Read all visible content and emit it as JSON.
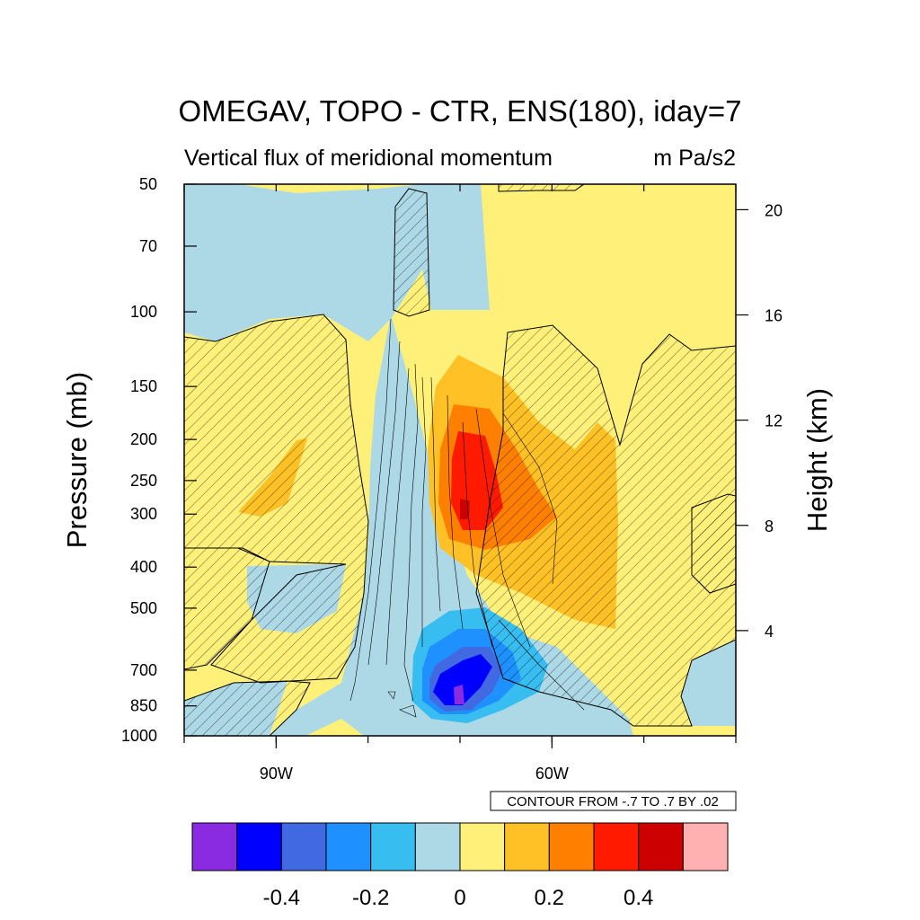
{
  "chart_data": {
    "type": "contour",
    "title": "OMEGAV, TOPO - CTR, ENS(180), iday=7",
    "subtitle_left": "Vertical flux of meridional momentum",
    "subtitle_right": "m Pa/s2",
    "ylabel_left": "Pressure (mb)",
    "ylabel_right": "Height (km)",
    "x_ticks": [
      {
        "x": 90,
        "label": "90W"
      },
      {
        "x": 60,
        "label": "60W"
      }
    ],
    "x_minor": [
      100,
      90,
      80,
      70,
      60,
      50,
      40
    ],
    "xlim": [
      "100W",
      "40W"
    ],
    "pressure_ticks": [
      50,
      70,
      100,
      150,
      200,
      250,
      300,
      400,
      500,
      700,
      850,
      1000
    ],
    "pressure_labels": [
      "50",
      "70",
      "100",
      "150",
      "200",
      "250",
      "300",
      "400",
      "500",
      "700",
      "850",
      "1000"
    ],
    "height_ticks": [
      4,
      8,
      12,
      16,
      20
    ],
    "height_labels": [
      "4",
      "8",
      "12",
      "16",
      "20"
    ],
    "contour_info": "CONTOUR FROM -.7 TO .7 BY .02",
    "colorbar": {
      "colors": [
        "#8a2be2",
        "#0000ff",
        "#4169e1",
        "#1e90ff",
        "#38bdf0",
        "#add8e6",
        "#fff07a",
        "#ffc125",
        "#ff7f00",
        "#ff1a00",
        "#cc0000",
        "#ffb0b0"
      ],
      "labels": [
        "-0.4",
        "-0.2",
        "0",
        "0.2",
        "0.4"
      ]
    },
    "hatching": "stippled/hatched regions indicate significance"
  }
}
